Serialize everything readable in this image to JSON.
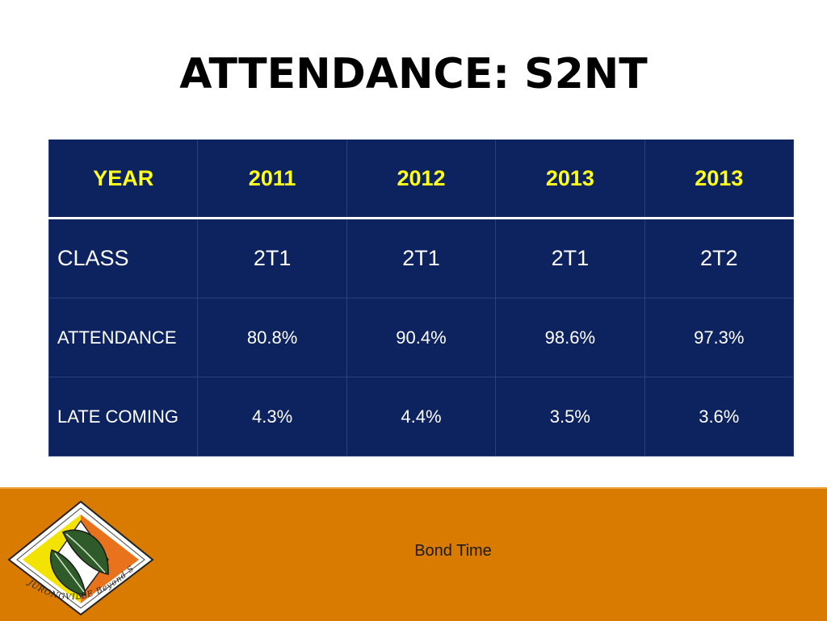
{
  "slide": {
    "title": "ATTENDANCE: S2NT",
    "footer": "Bond Time"
  },
  "table": {
    "header": [
      "YEAR",
      "2011",
      "2012",
      "2013",
      "2013"
    ],
    "rows": [
      [
        "CLASS",
        "2T1",
        "2T1",
        "2T1",
        "2T2"
      ],
      [
        "ATTENDANCE",
        "80.8%",
        "90.4%",
        "98.6%",
        "97.3%"
      ],
      [
        "LATE COMING",
        "4.3%",
        "4.4%",
        "3.5%",
        "3.6%"
      ]
    ]
  },
  "logo": {
    "text": "JURONGVILLE Beyond Self",
    "icon": "leaf-diamond-logo",
    "colors": {
      "green": "#2f5b2a",
      "orange": "#e8731c",
      "yellow": "#f2e400"
    }
  },
  "colors": {
    "table_bg": "#0d2360",
    "header_text": "#ffff1a",
    "footer_band": "#d97b00"
  }
}
